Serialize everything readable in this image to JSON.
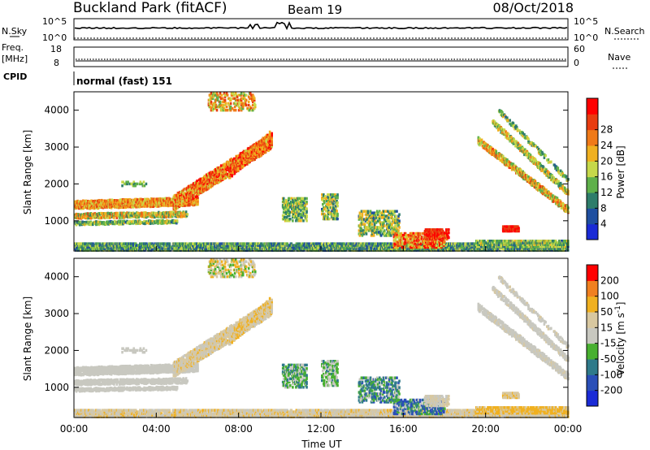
{
  "header": {
    "title": "Buckland Park (fitACF)",
    "beam": "Beam 19",
    "date": "08/Oct/2018"
  },
  "top_panels": {
    "nsky_label": "N.Sky",
    "nsky_ticks": [
      "10^5",
      "10^0"
    ],
    "nsearch_label": "N.Search",
    "nsearch_ticks": [
      "10^5",
      "10^0"
    ],
    "freq_label_1": "Freq.",
    "freq_label_2": "[MHz]",
    "freq_ticks": [
      "18",
      "8"
    ],
    "nave_label": "Nave",
    "nave_ticks": [
      "60",
      "0"
    ],
    "cpid_label": "CPID",
    "cpid_value": "normal (fast) 151"
  },
  "colors": {
    "power_scale": [
      "#1a2bd6",
      "#1f4fa0",
      "#2e7d6a",
      "#5fb04a",
      "#c6d84a",
      "#f0b020",
      "#f07a18",
      "#e83c10",
      "#ff0000"
    ],
    "velocity_scale": [
      "#1a2bd6",
      "#2a4fb8",
      "#2f7a8a",
      "#48b030",
      "#c8c8c0",
      "#d8c8a0",
      "#f0b020",
      "#f08020",
      "#ff0000"
    ]
  },
  "chart_data": [
    {
      "type": "heatmap",
      "xlabel": "",
      "ylabel": "Slant Range [km]",
      "ylim": [
        180,
        4500
      ],
      "y_ticks": [
        "1000",
        "2000",
        "3000",
        "4000"
      ],
      "x_ticks": [
        "00:00",
        "04:00",
        "08:00",
        "12:00",
        "16:00",
        "20:00",
        "00:00"
      ],
      "colorbar": {
        "label": "Power [dB]",
        "ticks": [
          "4",
          "8",
          "12",
          "16",
          "20",
          "24",
          "28"
        ],
        "range": [
          0,
          30
        ]
      }
    },
    {
      "type": "heatmap",
      "xlabel": "Time UT",
      "ylabel": "Slant Range [km]",
      "ylim": [
        180,
        4500
      ],
      "y_ticks": [
        "1000",
        "2000",
        "3000",
        "4000"
      ],
      "x_ticks": [
        "00:00",
        "04:00",
        "08:00",
        "12:00",
        "16:00",
        "20:00",
        "00:00"
      ],
      "colorbar": {
        "label": "Velocity [m s^-1]",
        "ticks": [
          "200",
          "100",
          "50",
          "15",
          "-15",
          "-50",
          "-100",
          "-200"
        ],
        "range": [
          -250,
          250
        ]
      }
    }
  ]
}
